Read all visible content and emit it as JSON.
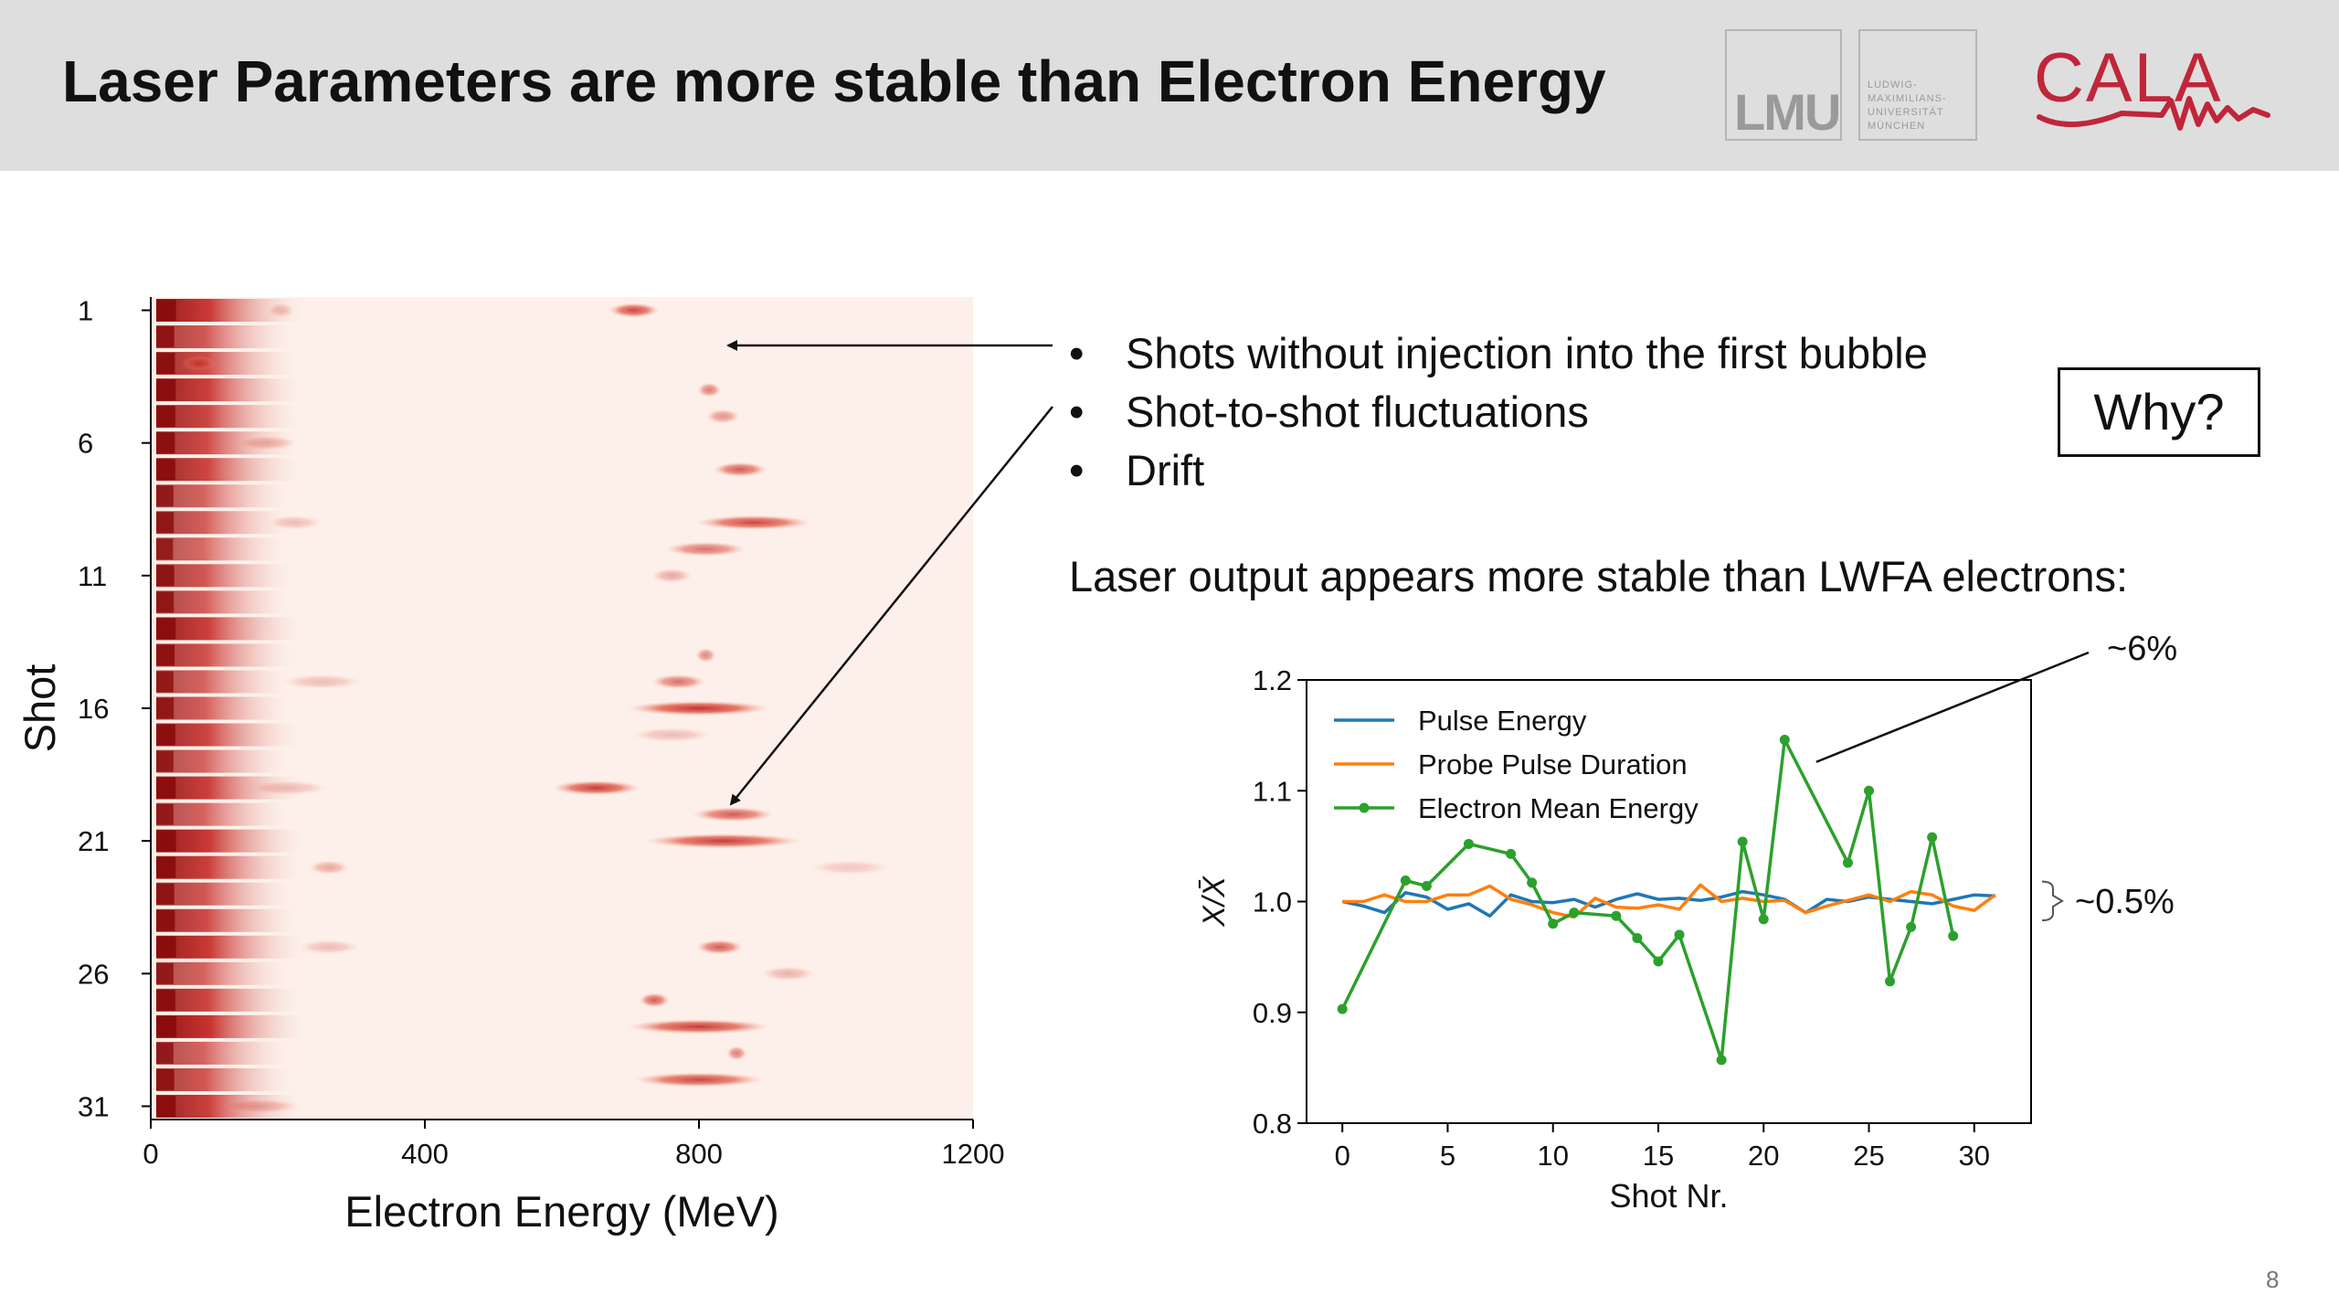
{
  "slide": {
    "title": "Laser Parameters are more stable than Electron Energy",
    "page_number": "8"
  },
  "logos": {
    "lmu_text": "LMU",
    "lmu_name": "LUDWIG-\nMAXIMILIANS-\nUNIVERSITÄT\nMÜNCHEN",
    "cala_text": "CALA",
    "cala_color": "#c0263a"
  },
  "bullets": [
    "Shots without injection into the first bubble",
    "Shot-to-shot fluctuations",
    "Drift"
  ],
  "bullet_symbol": "•",
  "why_box": "Why?",
  "laser_statement": "Laser output appears more stable than LWFA electrons:",
  "annotations": {
    "electron_variation": "~6%",
    "laser_variation": "~0.5%"
  },
  "colors": {
    "pulse_energy": "#1f77b4",
    "probe_duration": "#ff7f0e",
    "electron_energy": "#2ca02c",
    "heatmap_background": "#fdf0ea",
    "heatmap_peak": "#b81d1d"
  },
  "chart_data": [
    {
      "type": "heatmap",
      "xlabel": "Electron Energy (MeV)",
      "ylabel": "Shot",
      "xlim": [
        0,
        1200
      ],
      "ylim": [
        0.5,
        31.5
      ],
      "xticks": [
        0,
        400,
        800,
        1200
      ],
      "yticks": [
        1,
        6,
        11,
        16,
        21,
        26,
        31
      ],
      "n_shots": 31,
      "low_energy_intensity": [
        0.95,
        0.7,
        0.8,
        0.9,
        0.85,
        0.8,
        0.85,
        0.6,
        0.65,
        0.55,
        0.7,
        0.65,
        0.9,
        0.75,
        0.6,
        0.65,
        0.85,
        0.6,
        0.9,
        0.6,
        0.95,
        0.9,
        0.7,
        0.8,
        0.95,
        0.6,
        0.85,
        1.0,
        0.6,
        0.7,
        0.9
      ],
      "peaks": [
        {
          "shot": 1,
          "energy_mev": 705,
          "width_mev": 75,
          "intensity": 0.8
        },
        {
          "shot": 1,
          "energy_mev": 190,
          "width_mev": 40,
          "intensity": 0.25
        },
        {
          "shot": 3,
          "energy_mev": 70,
          "width_mev": 50,
          "intensity": 0.55
        },
        {
          "shot": 4,
          "energy_mev": 815,
          "width_mev": 35,
          "intensity": 0.55
        },
        {
          "shot": 5,
          "energy_mev": 835,
          "width_mev": 50,
          "intensity": 0.45
        },
        {
          "shot": 6,
          "energy_mev": 170,
          "width_mev": 90,
          "intensity": 0.3
        },
        {
          "shot": 7,
          "energy_mev": 860,
          "width_mev": 80,
          "intensity": 0.7
        },
        {
          "shot": 9,
          "energy_mev": 880,
          "width_mev": 170,
          "intensity": 0.8
        },
        {
          "shot": 9,
          "energy_mev": 210,
          "width_mev": 80,
          "intensity": 0.25
        },
        {
          "shot": 10,
          "energy_mev": 810,
          "width_mev": 120,
          "intensity": 0.6
        },
        {
          "shot": 11,
          "energy_mev": 760,
          "width_mev": 60,
          "intensity": 0.35
        },
        {
          "shot": 14,
          "energy_mev": 810,
          "width_mev": 30,
          "intensity": 0.5
        },
        {
          "shot": 15,
          "energy_mev": 770,
          "width_mev": 80,
          "intensity": 0.6
        },
        {
          "shot": 15,
          "energy_mev": 250,
          "width_mev": 120,
          "intensity": 0.25
        },
        {
          "shot": 16,
          "energy_mev": 800,
          "width_mev": 210,
          "intensity": 0.9
        },
        {
          "shot": 17,
          "energy_mev": 760,
          "width_mev": 120,
          "intensity": 0.25
        },
        {
          "shot": 19,
          "energy_mev": 650,
          "width_mev": 130,
          "intensity": 0.85
        },
        {
          "shot": 19,
          "energy_mev": 200,
          "width_mev": 120,
          "intensity": 0.25
        },
        {
          "shot": 20,
          "energy_mev": 850,
          "width_mev": 120,
          "intensity": 0.7
        },
        {
          "shot": 21,
          "energy_mev": 835,
          "width_mev": 230,
          "intensity": 0.85
        },
        {
          "shot": 22,
          "energy_mev": 1020,
          "width_mev": 120,
          "intensity": 0.2
        },
        {
          "shot": 22,
          "energy_mev": 260,
          "width_mev": 60,
          "intensity": 0.35
        },
        {
          "shot": 25,
          "energy_mev": 830,
          "width_mev": 70,
          "intensity": 0.7
        },
        {
          "shot": 25,
          "energy_mev": 260,
          "width_mev": 90,
          "intensity": 0.25
        },
        {
          "shot": 26,
          "energy_mev": 930,
          "width_mev": 80,
          "intensity": 0.3
        },
        {
          "shot": 27,
          "energy_mev": 735,
          "width_mev": 45,
          "intensity": 0.7
        },
        {
          "shot": 28,
          "energy_mev": 800,
          "width_mev": 210,
          "intensity": 0.85
        },
        {
          "shot": 29,
          "energy_mev": 855,
          "width_mev": 30,
          "intensity": 0.55
        },
        {
          "shot": 30,
          "energy_mev": 800,
          "width_mev": 190,
          "intensity": 0.8
        },
        {
          "shot": 31,
          "energy_mev": 160,
          "width_mev": 120,
          "intensity": 0.3
        }
      ]
    },
    {
      "type": "line",
      "xlabel": "Shot Nr.",
      "ylabel": "X/X̄",
      "xlim": [
        -1.7,
        32.7
      ],
      "ylim": [
        0.8,
        1.2
      ],
      "xticks": [
        0,
        5,
        10,
        15,
        20,
        25,
        30
      ],
      "yticks": [
        "0.8",
        "0.9",
        "1.0",
        "1.1",
        "1.2"
      ],
      "legend_position": "upper-left",
      "series": [
        {
          "name": "Pulse Energy",
          "color": "#1f77b4",
          "marker": false,
          "x": [
            0,
            1,
            2,
            3,
            4,
            5,
            6,
            7,
            8,
            9,
            10,
            11,
            12,
            13,
            14,
            15,
            16,
            17,
            18,
            19,
            20,
            21,
            22,
            23,
            24,
            25,
            26,
            27,
            28,
            29,
            30,
            31
          ],
          "y": [
            1.0,
            0.996,
            0.99,
            1.008,
            1.004,
            0.993,
            0.998,
            0.987,
            1.006,
            1.0,
            0.999,
            1.002,
            0.995,
            1.002,
            1.007,
            1.002,
            1.003,
            1.001,
            1.004,
            1.009,
            1.006,
            1.002,
            0.99,
            1.002,
            1.0,
            1.004,
            1.002,
            1.0,
            0.998,
            1.002,
            1.006,
            1.005
          ]
        },
        {
          "name": "Probe Pulse Duration",
          "color": "#ff7f0e",
          "marker": false,
          "x": [
            0,
            1,
            2,
            3,
            4,
            5,
            6,
            7,
            8,
            9,
            10,
            11,
            12,
            13,
            14,
            15,
            16,
            17,
            18,
            19,
            20,
            21,
            22,
            23,
            24,
            25,
            26,
            27,
            28,
            29,
            30,
            31
          ],
          "y": [
            1.0,
            1.0,
            1.006,
            1.0,
            1.0,
            1.006,
            1.006,
            1.014,
            1.002,
            0.997,
            0.99,
            0.986,
            1.003,
            0.995,
            0.994,
            0.997,
            0.993,
            1.015,
            1.0,
            1.003,
            1.0,
            1.001,
            0.99,
            0.996,
            1.001,
            1.006,
            1.0,
            1.009,
            1.006,
            0.996,
            0.992,
            1.006
          ]
        },
        {
          "name": "Electron Mean Energy",
          "color": "#2ca02c",
          "marker": true,
          "x": [
            0,
            3,
            4,
            6,
            8,
            9,
            10,
            11,
            13,
            14,
            15,
            16,
            18,
            19,
            20,
            21,
            24,
            25,
            26,
            27,
            28,
            29
          ],
          "y": [
            0.903,
            1.019,
            1.014,
            1.052,
            1.043,
            1.017,
            0.98,
            0.99,
            0.987,
            0.967,
            0.946,
            0.97,
            0.857,
            1.054,
            0.984,
            1.146,
            1.035,
            1.1,
            0.928,
            0.977,
            1.058,
            0.969
          ]
        }
      ]
    }
  ]
}
